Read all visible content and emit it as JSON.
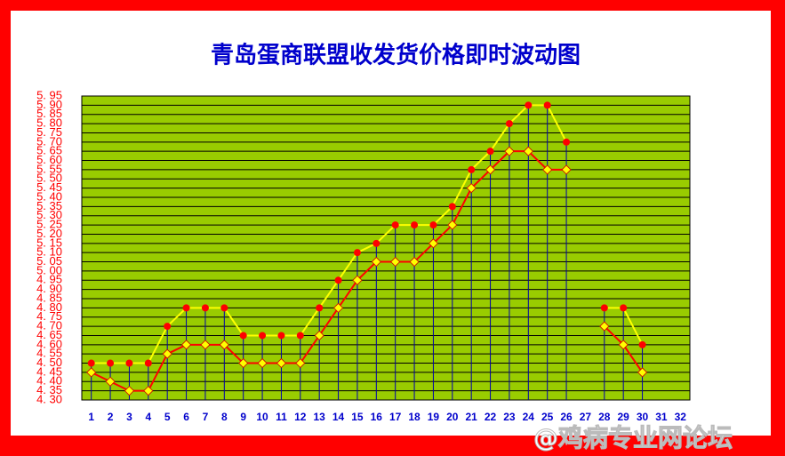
{
  "chart_data": {
    "type": "line",
    "title": "青岛蛋商联盟收发货价格即时波动图",
    "watermark": "@鸡病专业网论坛",
    "x": [
      1,
      2,
      3,
      4,
      5,
      6,
      7,
      8,
      9,
      10,
      11,
      12,
      13,
      14,
      15,
      16,
      17,
      18,
      19,
      20,
      21,
      22,
      23,
      24,
      25,
      26,
      27,
      28,
      29,
      30,
      31,
      32
    ],
    "xlim": [
      0.5,
      32.5
    ],
    "series": [
      {
        "color": "#ffff00",
        "marker": "circle",
        "marker_color": "#ff0000",
        "values": [
          4.5,
          4.5,
          4.5,
          4.5,
          4.7,
          4.8,
          4.8,
          4.8,
          4.65,
          4.65,
          4.65,
          4.65,
          4.8,
          4.95,
          5.1,
          5.15,
          5.25,
          5.25,
          5.25,
          5.35,
          5.55,
          5.65,
          5.8,
          5.9,
          5.9,
          5.7,
          null,
          4.8,
          4.8,
          4.6,
          null,
          null
        ]
      },
      {
        "color": "#ff0000",
        "marker": "diamond",
        "marker_color": "#ffff00",
        "values": [
          4.45,
          4.4,
          4.35,
          4.35,
          4.55,
          4.6,
          4.6,
          4.6,
          4.5,
          4.5,
          4.5,
          4.5,
          4.65,
          4.8,
          4.95,
          5.05,
          5.05,
          5.05,
          5.15,
          5.25,
          5.45,
          5.55,
          5.65,
          5.65,
          5.55,
          5.55,
          null,
          4.7,
          4.6,
          4.45,
          null,
          null
        ]
      }
    ],
    "ylim": [
      4.3,
      5.95
    ],
    "yticks": [
      {
        "value": 4.3,
        "label": "4. 30"
      },
      {
        "value": 4.35,
        "label": "4. 35"
      },
      {
        "value": 4.4,
        "label": "4. 40"
      },
      {
        "value": 4.45,
        "label": "4. 45"
      },
      {
        "value": 4.5,
        "label": "4. 50"
      },
      {
        "value": 4.55,
        "label": "4. 55"
      },
      {
        "value": 4.6,
        "label": "4. 60"
      },
      {
        "value": 4.65,
        "label": "4. 65"
      },
      {
        "value": 4.7,
        "label": "4. 70"
      },
      {
        "value": 4.75,
        "label": "4. 75"
      },
      {
        "value": 4.8,
        "label": "4. 80"
      },
      {
        "value": 4.85,
        "label": "4. 85"
      },
      {
        "value": 4.9,
        "label": "4. 90"
      },
      {
        "value": 4.95,
        "label": "4. 95"
      },
      {
        "value": 5.0,
        "label": "5. 00"
      },
      {
        "value": 5.05,
        "label": "5. 05"
      },
      {
        "value": 5.1,
        "label": "5. 10"
      },
      {
        "value": 5.15,
        "label": "5. 15"
      },
      {
        "value": 5.2,
        "label": "5. 20"
      },
      {
        "value": 5.25,
        "label": "5. 25"
      },
      {
        "value": 5.3,
        "label": "5. 30"
      },
      {
        "value": 5.35,
        "label": "5. 35"
      },
      {
        "value": 5.4,
        "label": "5. 40"
      },
      {
        "value": 5.45,
        "label": "5. 45"
      },
      {
        "value": 5.5,
        "label": "5. 50"
      },
      {
        "value": 5.55,
        "label": "5. 55"
      },
      {
        "value": 5.6,
        "label": "5. 60"
      },
      {
        "value": 5.65,
        "label": "5. 65"
      },
      {
        "value": 5.7,
        "label": "5. 70"
      },
      {
        "value": 5.75,
        "label": "5. 75"
      },
      {
        "value": 5.8,
        "label": "5. 80"
      },
      {
        "value": 5.85,
        "label": "5. 85"
      },
      {
        "value": 5.9,
        "label": "5. 90"
      },
      {
        "value": 5.95,
        "label": "5. 95"
      }
    ],
    "grid": true,
    "plot_color": "#99cc00"
  }
}
